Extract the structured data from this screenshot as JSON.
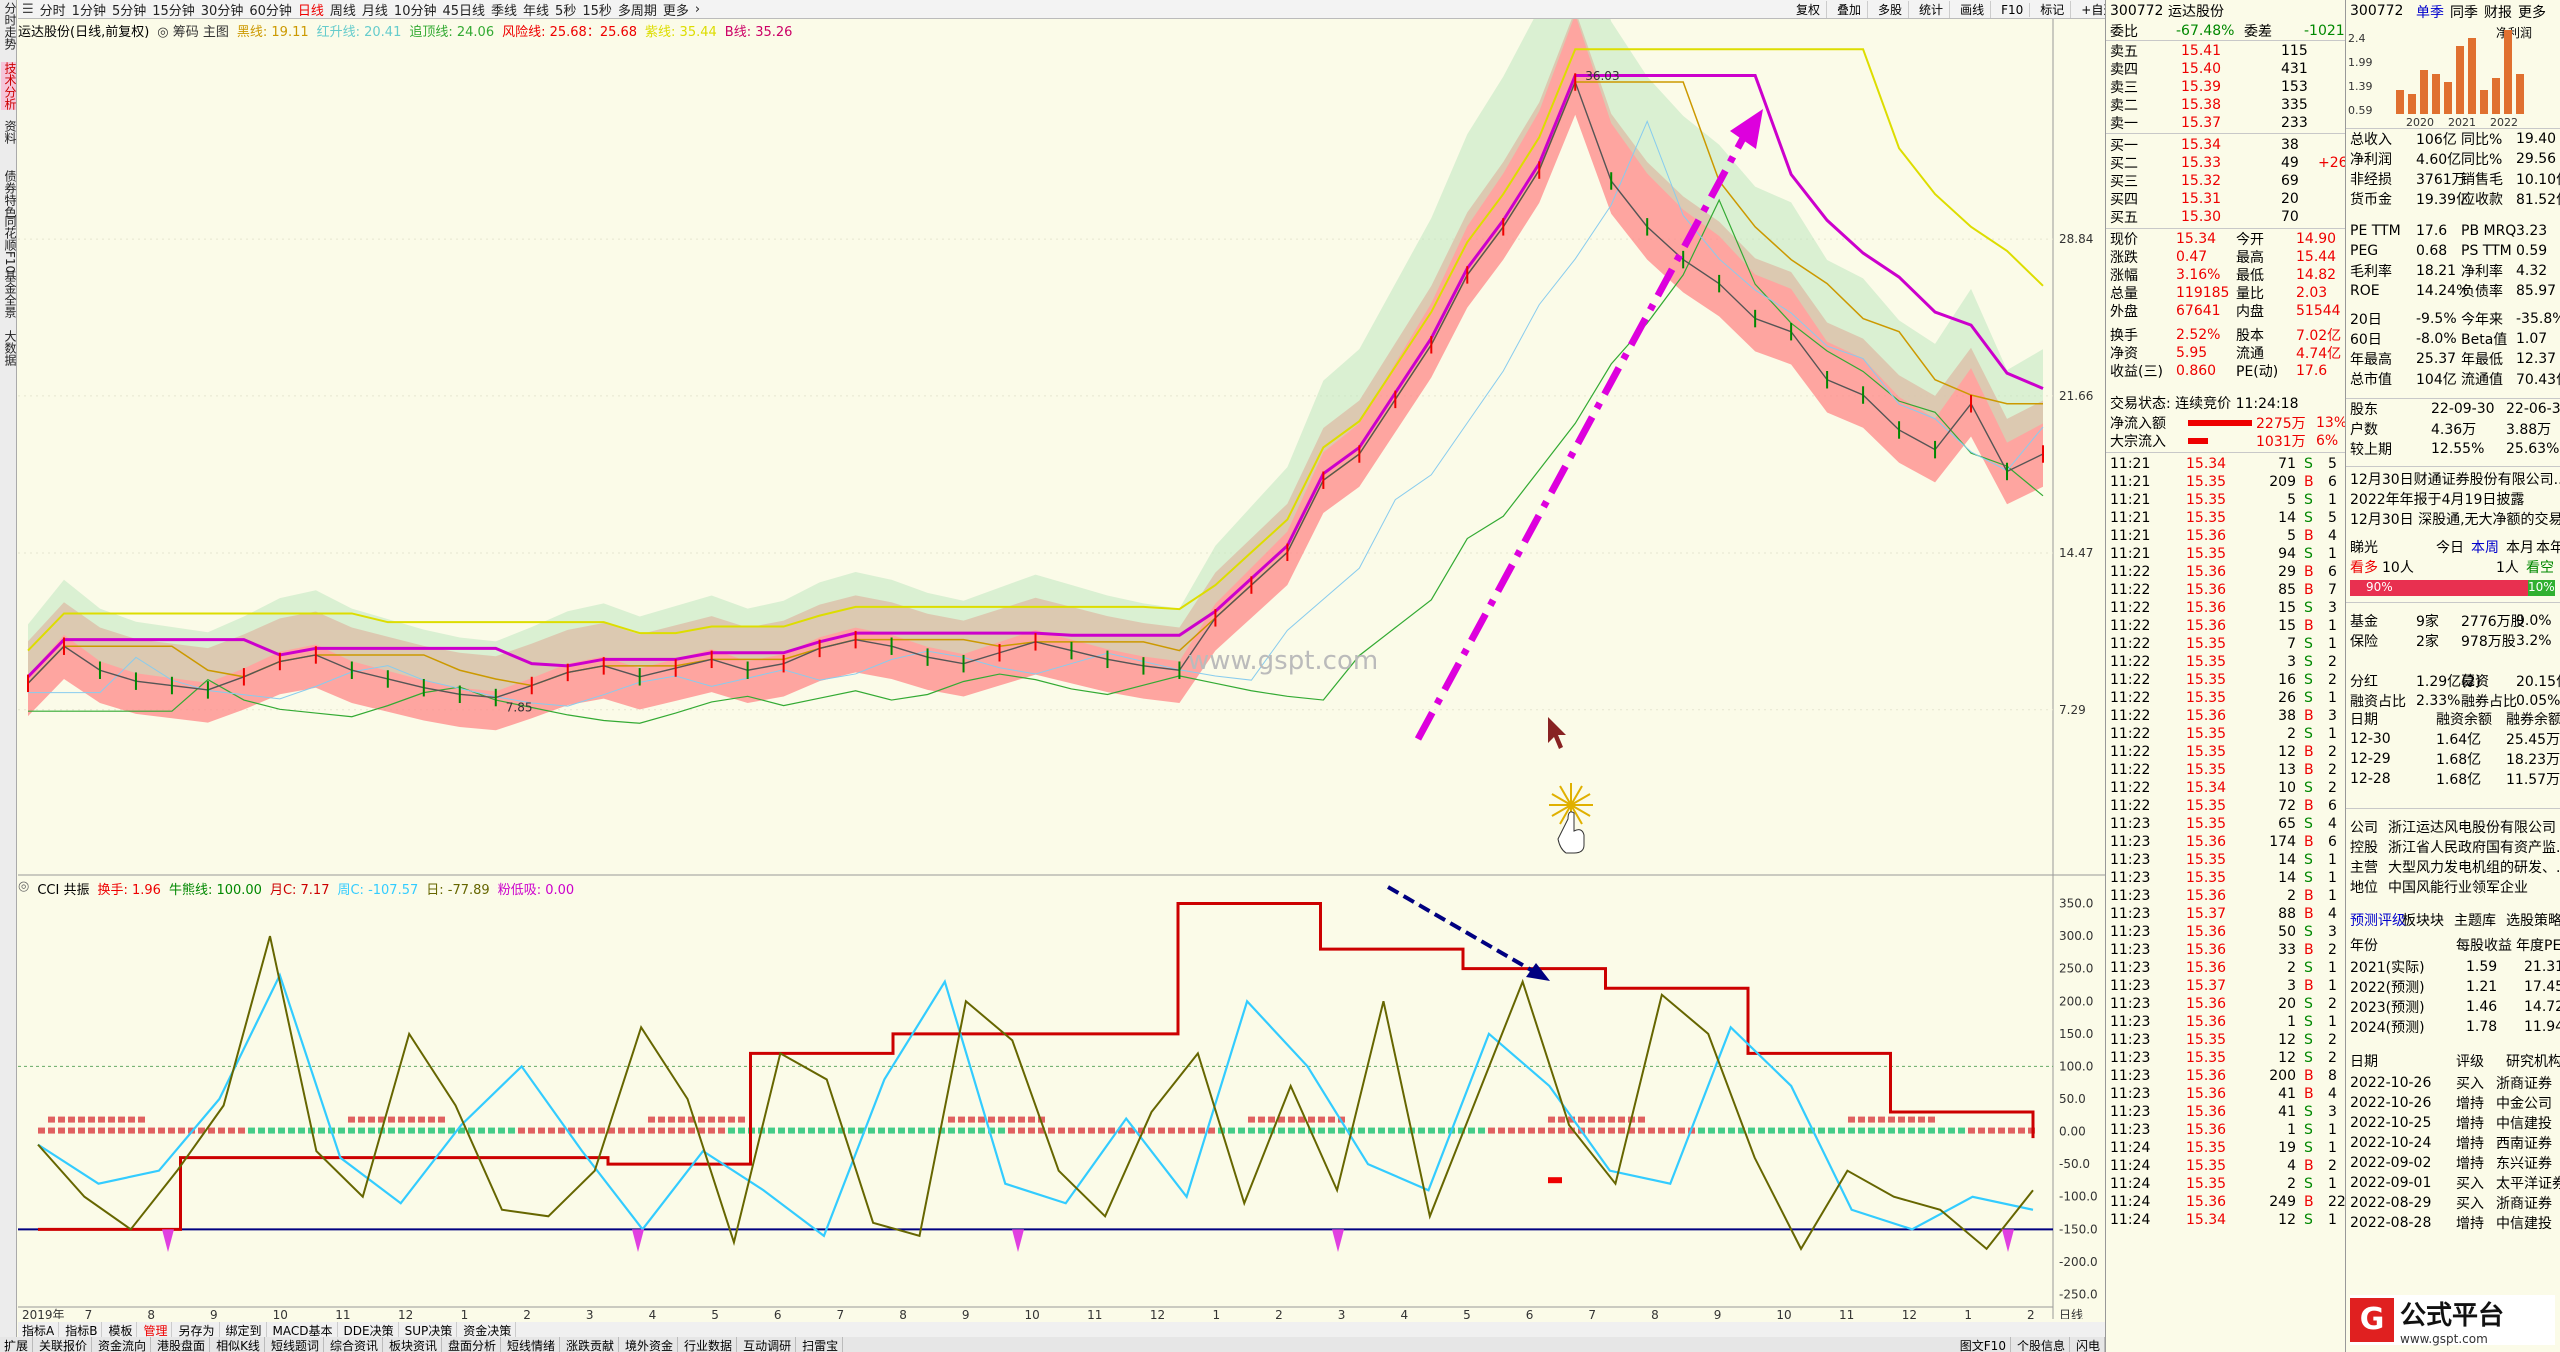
{
  "sidebar": [
    "分时走势",
    "技术分析",
    "资料",
    "债券特色",
    "同花顺F10",
    "基金全景",
    "大数据"
  ],
  "periods": [
    "分时",
    "1分钟",
    "5分钟",
    "15分钟",
    "30分钟",
    "60分钟",
    "日线",
    "周线",
    "月线",
    "10分钟",
    "45日线",
    "季线",
    "年线",
    "5秒",
    "15秒",
    "多周期",
    "更多"
  ],
  "selected_period": "日线",
  "toolbar_right": [
    "复权",
    "叠加",
    "多股",
    "统计",
    "画线",
    "F10",
    "标记",
    "+自选",
    "返回"
  ],
  "main_legend": {
    "name": "运达股份(日线,前复权)",
    "mode": "◎ 筹码 主图",
    "l1": "黑线: 19.11",
    "l2": "红升线: 20.41",
    "l3": "追顶线: 24.06",
    "l4": "风险线: 25.68：25.68",
    "l5": "紫线: 35.44",
    "l6": "B线: 35.26"
  },
  "sub_legend": {
    "name": "CCI 共振",
    "l1": "换手: 1.96",
    "l2": "牛熊线: 100.00",
    "l3": "月C: 7.17",
    "l4": "周C: -107.57",
    "l5": "日: -77.89",
    "l6": "粉低吸: 0.00"
  },
  "price_axis": [
    "28.84",
    "21.66",
    "14.47",
    "7.29"
  ],
  "cci_axis": [
    "350.0",
    "300.0",
    "250.0",
    "200.0",
    "150.0",
    "100.0",
    "50.0",
    "0.00",
    "-50.0",
    "-100.0",
    "-150.0",
    "-200.0",
    "-250.0"
  ],
  "time_axis": [
    "2019年",
    "7",
    "8",
    "9",
    "10",
    "11",
    "12",
    "1",
    "2",
    "3",
    "4",
    "5",
    "6",
    "7",
    "8",
    "9",
    "10",
    "11",
    "12",
    "1",
    "2",
    "3",
    "4",
    "5",
    "6",
    "7",
    "8",
    "9",
    "10",
    "11",
    "12",
    "1",
    "2"
  ],
  "watermark": "www.gspt.com",
  "high_label": "36.03",
  "low_label": "7.85",
  "axis_corner": "日线",
  "chart_data": {
    "type": "line",
    "title": "运达股份(日线,前复权)",
    "price_ylim": [
      0,
      38
    ],
    "cci_ylim": [
      -260,
      360
    ],
    "price": [
      8.5,
      10.2,
      9.1,
      8.6,
      8.4,
      8.2,
      8.8,
      9.5,
      9.8,
      9.1,
      8.7,
      8.3,
      8.0,
      7.85,
      8.4,
      9.0,
      9.3,
      8.8,
      9.2,
      9.6,
      9.1,
      9.4,
      10.1,
      10.5,
      10.2,
      9.7,
      9.4,
      9.9,
      10.4,
      10.0,
      9.6,
      9.3,
      9.1,
      11.5,
      13.0,
      14.5,
      17.8,
      19.0,
      21.5,
      24.0,
      27.2,
      29.4,
      32.0,
      36.03,
      31.5,
      29.4,
      27.9,
      26.8,
      25.2,
      24.6,
      22.4,
      21.7,
      20.1,
      19.2,
      21.3,
      18.2,
      19.0
    ],
    "cci_daily": [
      -20,
      -100,
      -150,
      -60,
      40,
      300,
      -30,
      -100,
      150,
      40,
      -120,
      -130,
      -60,
      160,
      50,
      -170,
      120,
      80,
      -140,
      -160,
      200,
      140,
      -60,
      -130,
      30,
      120,
      -110,
      70,
      -90,
      200,
      -130,
      50,
      230,
      10,
      -80,
      210,
      150,
      -40,
      -180,
      -60,
      -100,
      -120,
      -180,
      -90
    ],
    "cci_weekly": [
      -20,
      -80,
      -60,
      50,
      240,
      -40,
      -110,
      10,
      100,
      -30,
      -150,
      -30,
      -90,
      -160,
      80,
      230,
      -80,
      -110,
      20,
      -100,
      200,
      100,
      -50,
      -90,
      150,
      70,
      -60,
      -80,
      160,
      70,
      -120,
      -150,
      -100,
      -120
    ],
    "cci_monthly": [
      -150,
      -40,
      -40,
      -40,
      -50,
      120,
      150,
      150,
      350,
      280,
      250,
      220,
      120,
      30,
      -10
    ]
  },
  "cci_ylim": [
    -260,
    360
  ],
  "quote": {
    "code": "300772",
    "name": "运达股份",
    "weibi_label": "委比",
    "weibi": "-67.48%",
    "weicha_label": "委差",
    "weicha": "-1021",
    "sell": [
      [
        "卖五",
        "15.41",
        "115"
      ],
      [
        "卖四",
        "15.40",
        "431"
      ],
      [
        "卖三",
        "15.39",
        "153"
      ],
      [
        "卖二",
        "15.38",
        "335"
      ],
      [
        "卖一",
        "15.37",
        "233"
      ]
    ],
    "buy": [
      [
        "买一",
        "15.34",
        "38",
        ""
      ],
      [
        "买二",
        "15.33",
        "49",
        "+26"
      ],
      [
        "买三",
        "15.32",
        "69",
        ""
      ],
      [
        "买四",
        "15.31",
        "20",
        ""
      ],
      [
        "买五",
        "15.30",
        "70",
        ""
      ]
    ],
    "stats": [
      [
        "现价",
        "15.34",
        "今开",
        "14.90"
      ],
      [
        "涨跌",
        "0.47",
        "最高",
        "15.44"
      ],
      [
        "涨幅",
        "3.16%",
        "最低",
        "14.82"
      ],
      [
        "总量",
        "119185",
        "量比",
        "2.03"
      ],
      [
        "外盘",
        "67641",
        "内盘",
        "51544"
      ],
      [
        "换手",
        "2.52%",
        "股本",
        "7.02亿"
      ],
      [
        "净资",
        "5.95",
        "流通",
        "4.74亿"
      ],
      [
        "收益(三)",
        "0.860",
        "PE(动)",
        "17.6"
      ]
    ],
    "status": "交易状态: 连续竞价 11:24:18",
    "flow": [
      [
        "净流入额",
        "2275万",
        "13%"
      ],
      [
        "大宗流入",
        "1031万",
        "6%"
      ]
    ]
  },
  "ticks": [
    [
      "11:21",
      "15.34",
      "71",
      "S",
      "5"
    ],
    [
      "11:21",
      "15.35",
      "209",
      "B",
      "6"
    ],
    [
      "11:21",
      "15.35",
      "5",
      "S",
      "1"
    ],
    [
      "11:21",
      "15.35",
      "14",
      "S",
      "5"
    ],
    [
      "11:21",
      "15.36",
      "5",
      "B",
      "4"
    ],
    [
      "11:21",
      "15.35",
      "94",
      "S",
      "1"
    ],
    [
      "11:22",
      "15.36",
      "29",
      "B",
      "6"
    ],
    [
      "11:22",
      "15.36",
      "85",
      "B",
      "7"
    ],
    [
      "11:22",
      "15.36",
      "15",
      "S",
      "3"
    ],
    [
      "11:22",
      "15.36",
      "15",
      "B",
      "1"
    ],
    [
      "11:22",
      "15.35",
      "7",
      "S",
      "1"
    ],
    [
      "11:22",
      "15.35",
      "3",
      "S",
      "2"
    ],
    [
      "11:22",
      "15.35",
      "16",
      "S",
      "2"
    ],
    [
      "11:22",
      "15.35",
      "26",
      "S",
      "1"
    ],
    [
      "11:22",
      "15.36",
      "38",
      "B",
      "3"
    ],
    [
      "11:22",
      "15.35",
      "2",
      "S",
      "1"
    ],
    [
      "11:22",
      "15.35",
      "12",
      "B",
      "2"
    ],
    [
      "11:22",
      "15.35",
      "13",
      "B",
      "2"
    ],
    [
      "11:22",
      "15.34",
      "10",
      "S",
      "2"
    ],
    [
      "11:22",
      "15.35",
      "72",
      "B",
      "6"
    ],
    [
      "11:23",
      "15.35",
      "65",
      "S",
      "4"
    ],
    [
      "11:23",
      "15.36",
      "174",
      "B",
      "6"
    ],
    [
      "11:23",
      "15.35",
      "14",
      "S",
      "1"
    ],
    [
      "11:23",
      "15.35",
      "14",
      "S",
      "1"
    ],
    [
      "11:23",
      "15.36",
      "2",
      "B",
      "1"
    ],
    [
      "11:23",
      "15.37",
      "88",
      "B",
      "4"
    ],
    [
      "11:23",
      "15.36",
      "50",
      "S",
      "3"
    ],
    [
      "11:23",
      "15.36",
      "33",
      "B",
      "2"
    ],
    [
      "11:23",
      "15.36",
      "2",
      "S",
      "1"
    ],
    [
      "11:23",
      "15.37",
      "3",
      "B",
      "1"
    ],
    [
      "11:23",
      "15.36",
      "20",
      "S",
      "2"
    ],
    [
      "11:23",
      "15.36",
      "1",
      "S",
      "1"
    ],
    [
      "11:23",
      "15.35",
      "12",
      "S",
      "2"
    ],
    [
      "11:23",
      "15.35",
      "12",
      "S",
      "2"
    ],
    [
      "11:23",
      "15.36",
      "200",
      "B",
      "8"
    ],
    [
      "11:23",
      "15.36",
      "41",
      "B",
      "4"
    ],
    [
      "11:23",
      "15.36",
      "41",
      "S",
      "3"
    ],
    [
      "11:23",
      "15.36",
      "1",
      "S",
      "1"
    ],
    [
      "11:24",
      "15.35",
      "19",
      "S",
      "1"
    ],
    [
      "11:24",
      "15.35",
      "4",
      "B",
      "2"
    ],
    [
      "11:24",
      "15.35",
      "2",
      "S",
      "1"
    ],
    [
      "11:24",
      "15.36",
      "249",
      "B",
      "22"
    ],
    [
      "11:24",
      "15.34",
      "12",
      "S",
      "1"
    ]
  ],
  "fin": {
    "code": "300772",
    "tabs": [
      "单季",
      "同季",
      "财报",
      "更多"
    ],
    "years": [
      "2020",
      "2021",
      "2022"
    ],
    "bars": [
      0.3,
      0.25,
      0.55,
      0.5,
      0.4,
      0.85,
      0.95,
      0.3,
      0.45,
      1.05,
      0.5
    ],
    "yaxis": [
      "2.4",
      "1.99",
      "1.39",
      "0.59"
    ],
    "legend": "净利润",
    "rows": [
      [
        "总收入",
        "106亿",
        "同比%",
        "19.40"
      ],
      [
        "净利润",
        "4.60亿",
        "同比%",
        "29.56"
      ],
      [
        "非经损",
        "3761万",
        "销售毛",
        "10.10亿"
      ],
      [
        "货币金",
        "19.39亿",
        "应收款",
        "81.52亿"
      ]
    ],
    "pe": [
      [
        "PE TTM",
        "17.6",
        "PB MRQ",
        "3.23"
      ],
      [
        "PEG",
        "0.68",
        "PS TTM",
        "0.59"
      ],
      [
        "毛利率",
        "18.21",
        "净利率",
        "4.32"
      ],
      [
        "ROE",
        "14.24%",
        "负债率",
        "85.97"
      ]
    ],
    "perf": [
      [
        "20日",
        "-9.5%",
        "今年来",
        "-35.8%"
      ],
      [
        "60日",
        "-8.0%",
        "Beta值",
        "1.07"
      ],
      [
        "年最高",
        "25.37",
        "年最低",
        "12.37"
      ],
      [
        "总市值",
        "104亿",
        "流通值",
        "70.43亿"
      ]
    ],
    "holders": [
      [
        "股东",
        "22-09-30",
        "22-06-30"
      ],
      [
        "户数",
        "4.36万",
        "3.88万"
      ],
      [
        "较上期",
        "12.55%",
        "25.63%"
      ]
    ],
    "news": [
      "12月30日财通证券股份有限公司...",
      "2022年年报于4月19日披露",
      "12月30日 深股通,无大净额的交易"
    ],
    "look": {
      "label": "睇光",
      "today": "今日",
      "week": "本周",
      "month": "本月",
      "year": "本年",
      "bull": "看多",
      "bull_n": "10人",
      "bear": "看空",
      "bear_n": "1人",
      "bull_pct": "90%",
      "bear_pct": "10%"
    },
    "inst": [
      [
        "基金",
        "9家",
        "2776万股",
        "9.0%"
      ],
      [
        "保险",
        "2家",
        "978万股",
        "3.2%"
      ]
    ],
    "div": [
      [
        "分红",
        "1.29亿(2)",
        "募资",
        "20.15亿(2)"
      ],
      [
        "融资占比",
        "2.33%",
        "融券占比",
        "0.05%"
      ]
    ],
    "margin_head": [
      "日期",
      "融资余额",
      "融券余额"
    ],
    "margin": [
      [
        "12-30",
        "1.64亿",
        "25.45万"
      ],
      [
        "12-29",
        "1.68亿",
        "18.23万"
      ],
      [
        "12-28",
        "1.68亿",
        "11.57万"
      ]
    ],
    "company": [
      [
        "公司",
        "浙江运达风电股份有限公司"
      ],
      [
        "控股",
        "浙江省人民政府国有资产监..."
      ],
      [
        "主营",
        "大型风力发电机组的研发、..."
      ],
      [
        "地位",
        "中国风能行业领军企业"
      ]
    ],
    "forecast_tabs": [
      "预测评级",
      "板块块",
      "主题库",
      "选股策略"
    ],
    "fc_head": [
      "年份",
      "每股收益",
      "年度PE"
    ],
    "fc": [
      [
        "2021(实际)",
        "1.59",
        "21.31"
      ],
      [
        "2022(预测)",
        "1.21",
        "17.45"
      ],
      [
        "2023(预测)",
        "1.46",
        "14.72"
      ],
      [
        "2024(预测)",
        "1.78",
        "11.94"
      ]
    ],
    "rt_head": [
      "日期",
      "评级",
      "研究机构"
    ],
    "rt": [
      [
        "2022-10-26",
        "买入",
        "浙商证券"
      ],
      [
        "2022-10-26",
        "增持",
        "中金公司"
      ],
      [
        "2022-10-25",
        "增持",
        "中信建投"
      ],
      [
        "2022-10-24",
        "增持",
        "西南证券"
      ],
      [
        "2022-09-02",
        "增持",
        "东兴证券"
      ],
      [
        "2022-09-01",
        "买入",
        "太平洋证券"
      ],
      [
        "2022-08-29",
        "买入",
        "浙商证券"
      ],
      [
        "2022-08-28",
        "增持",
        "中信建投"
      ]
    ]
  },
  "bottom_tabs": [
    "指标A",
    "指标B",
    "模板",
    "管理",
    "另存为",
    "绑定到",
    "MACD基本",
    "DDE决策",
    "SUP决策",
    "资金决策"
  ],
  "bottom_tabs2": [
    "扩展",
    "关联报价",
    "资金流向",
    "港股盘面",
    "相似K线",
    "短线题词",
    "综合资讯",
    "板块资讯",
    "盘面分析",
    "短线情绪",
    "涨跌贡献",
    "境外资金",
    "行业数据",
    "互动调研",
    "扫雷宝"
  ],
  "bottom_right": [
    "图文F10",
    "个股信息",
    "闪电"
  ],
  "logo": "公式平台",
  "logo_url": "www.gspt.com",
  "colors": {
    "up": "#e00000",
    "down": "#008000",
    "purple": "#cc00cc",
    "bg": "#fbfbe8"
  }
}
